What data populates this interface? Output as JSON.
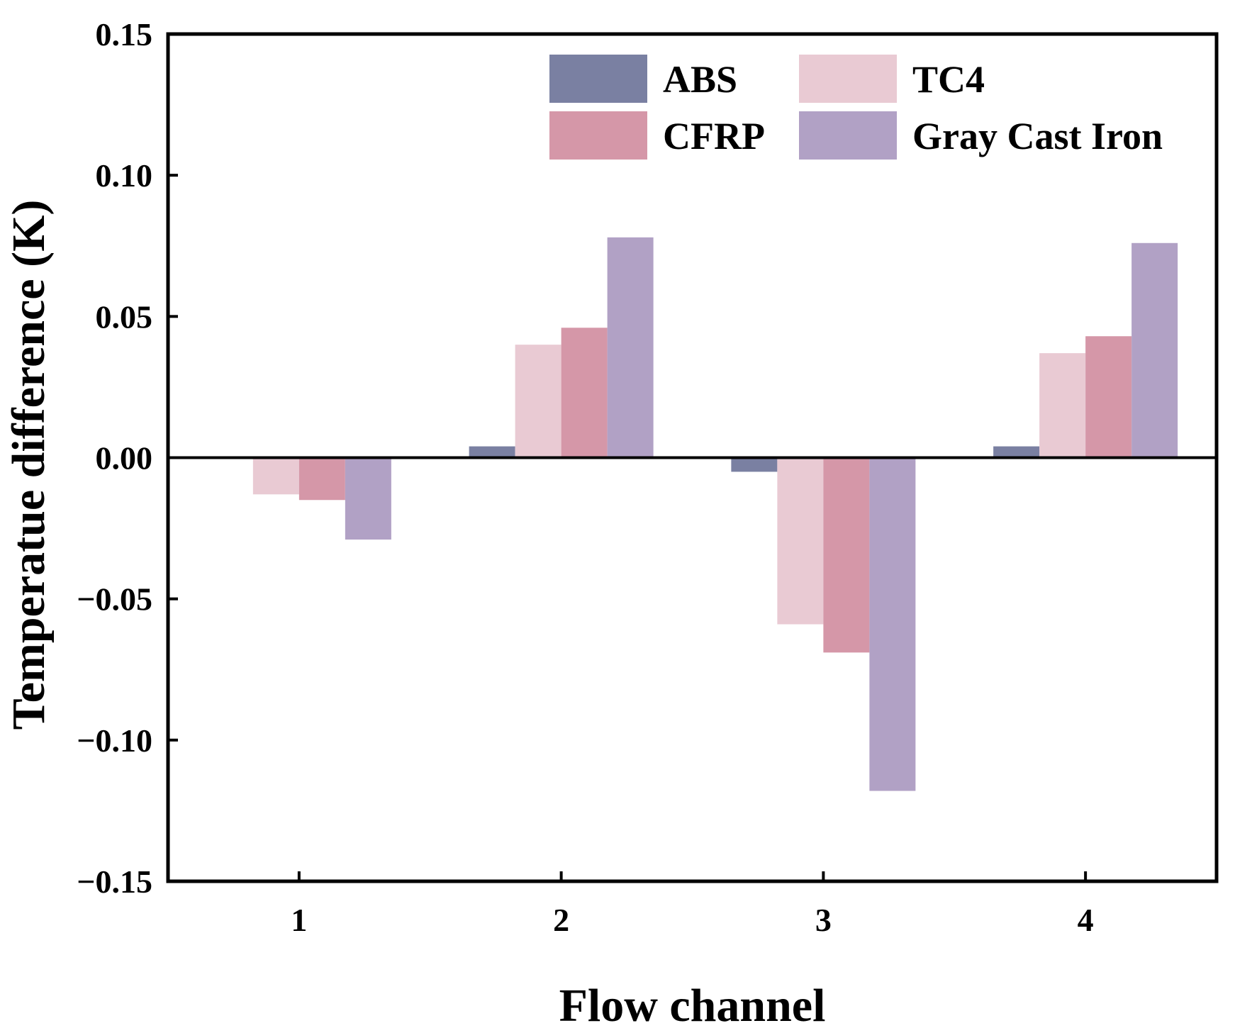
{
  "chart_data": {
    "type": "bar",
    "title": "",
    "xlabel": "Flow channel",
    "ylabel": "Temperatue difference (K)",
    "categories": [
      "1",
      "2",
      "3",
      "4"
    ],
    "ylim": [
      -0.15,
      0.15
    ],
    "yticks": [
      0.15,
      0.1,
      0.05,
      0.0,
      -0.05,
      -0.1,
      -0.15
    ],
    "ytick_labels": [
      "0.15",
      "0.10",
      "0.05",
      "0.00",
      "−0.05",
      "−0.10",
      "−0.15"
    ],
    "grid": false,
    "legend_position": "top-right",
    "series": [
      {
        "name": "ABS",
        "color": "#7a80a2",
        "values": [
          -0.0005,
          0.004,
          -0.005,
          0.004
        ]
      },
      {
        "name": "TC4",
        "color": "#e9cad3",
        "values": [
          -0.013,
          0.04,
          -0.059,
          0.037
        ]
      },
      {
        "name": "CFRP",
        "color": "#d597a8",
        "values": [
          -0.015,
          0.046,
          -0.069,
          0.043
        ]
      },
      {
        "name": "Gray Cast Iron",
        "color": "#b1a1c5",
        "values": [
          -0.029,
          0.078,
          -0.118,
          0.076
        ]
      }
    ]
  }
}
